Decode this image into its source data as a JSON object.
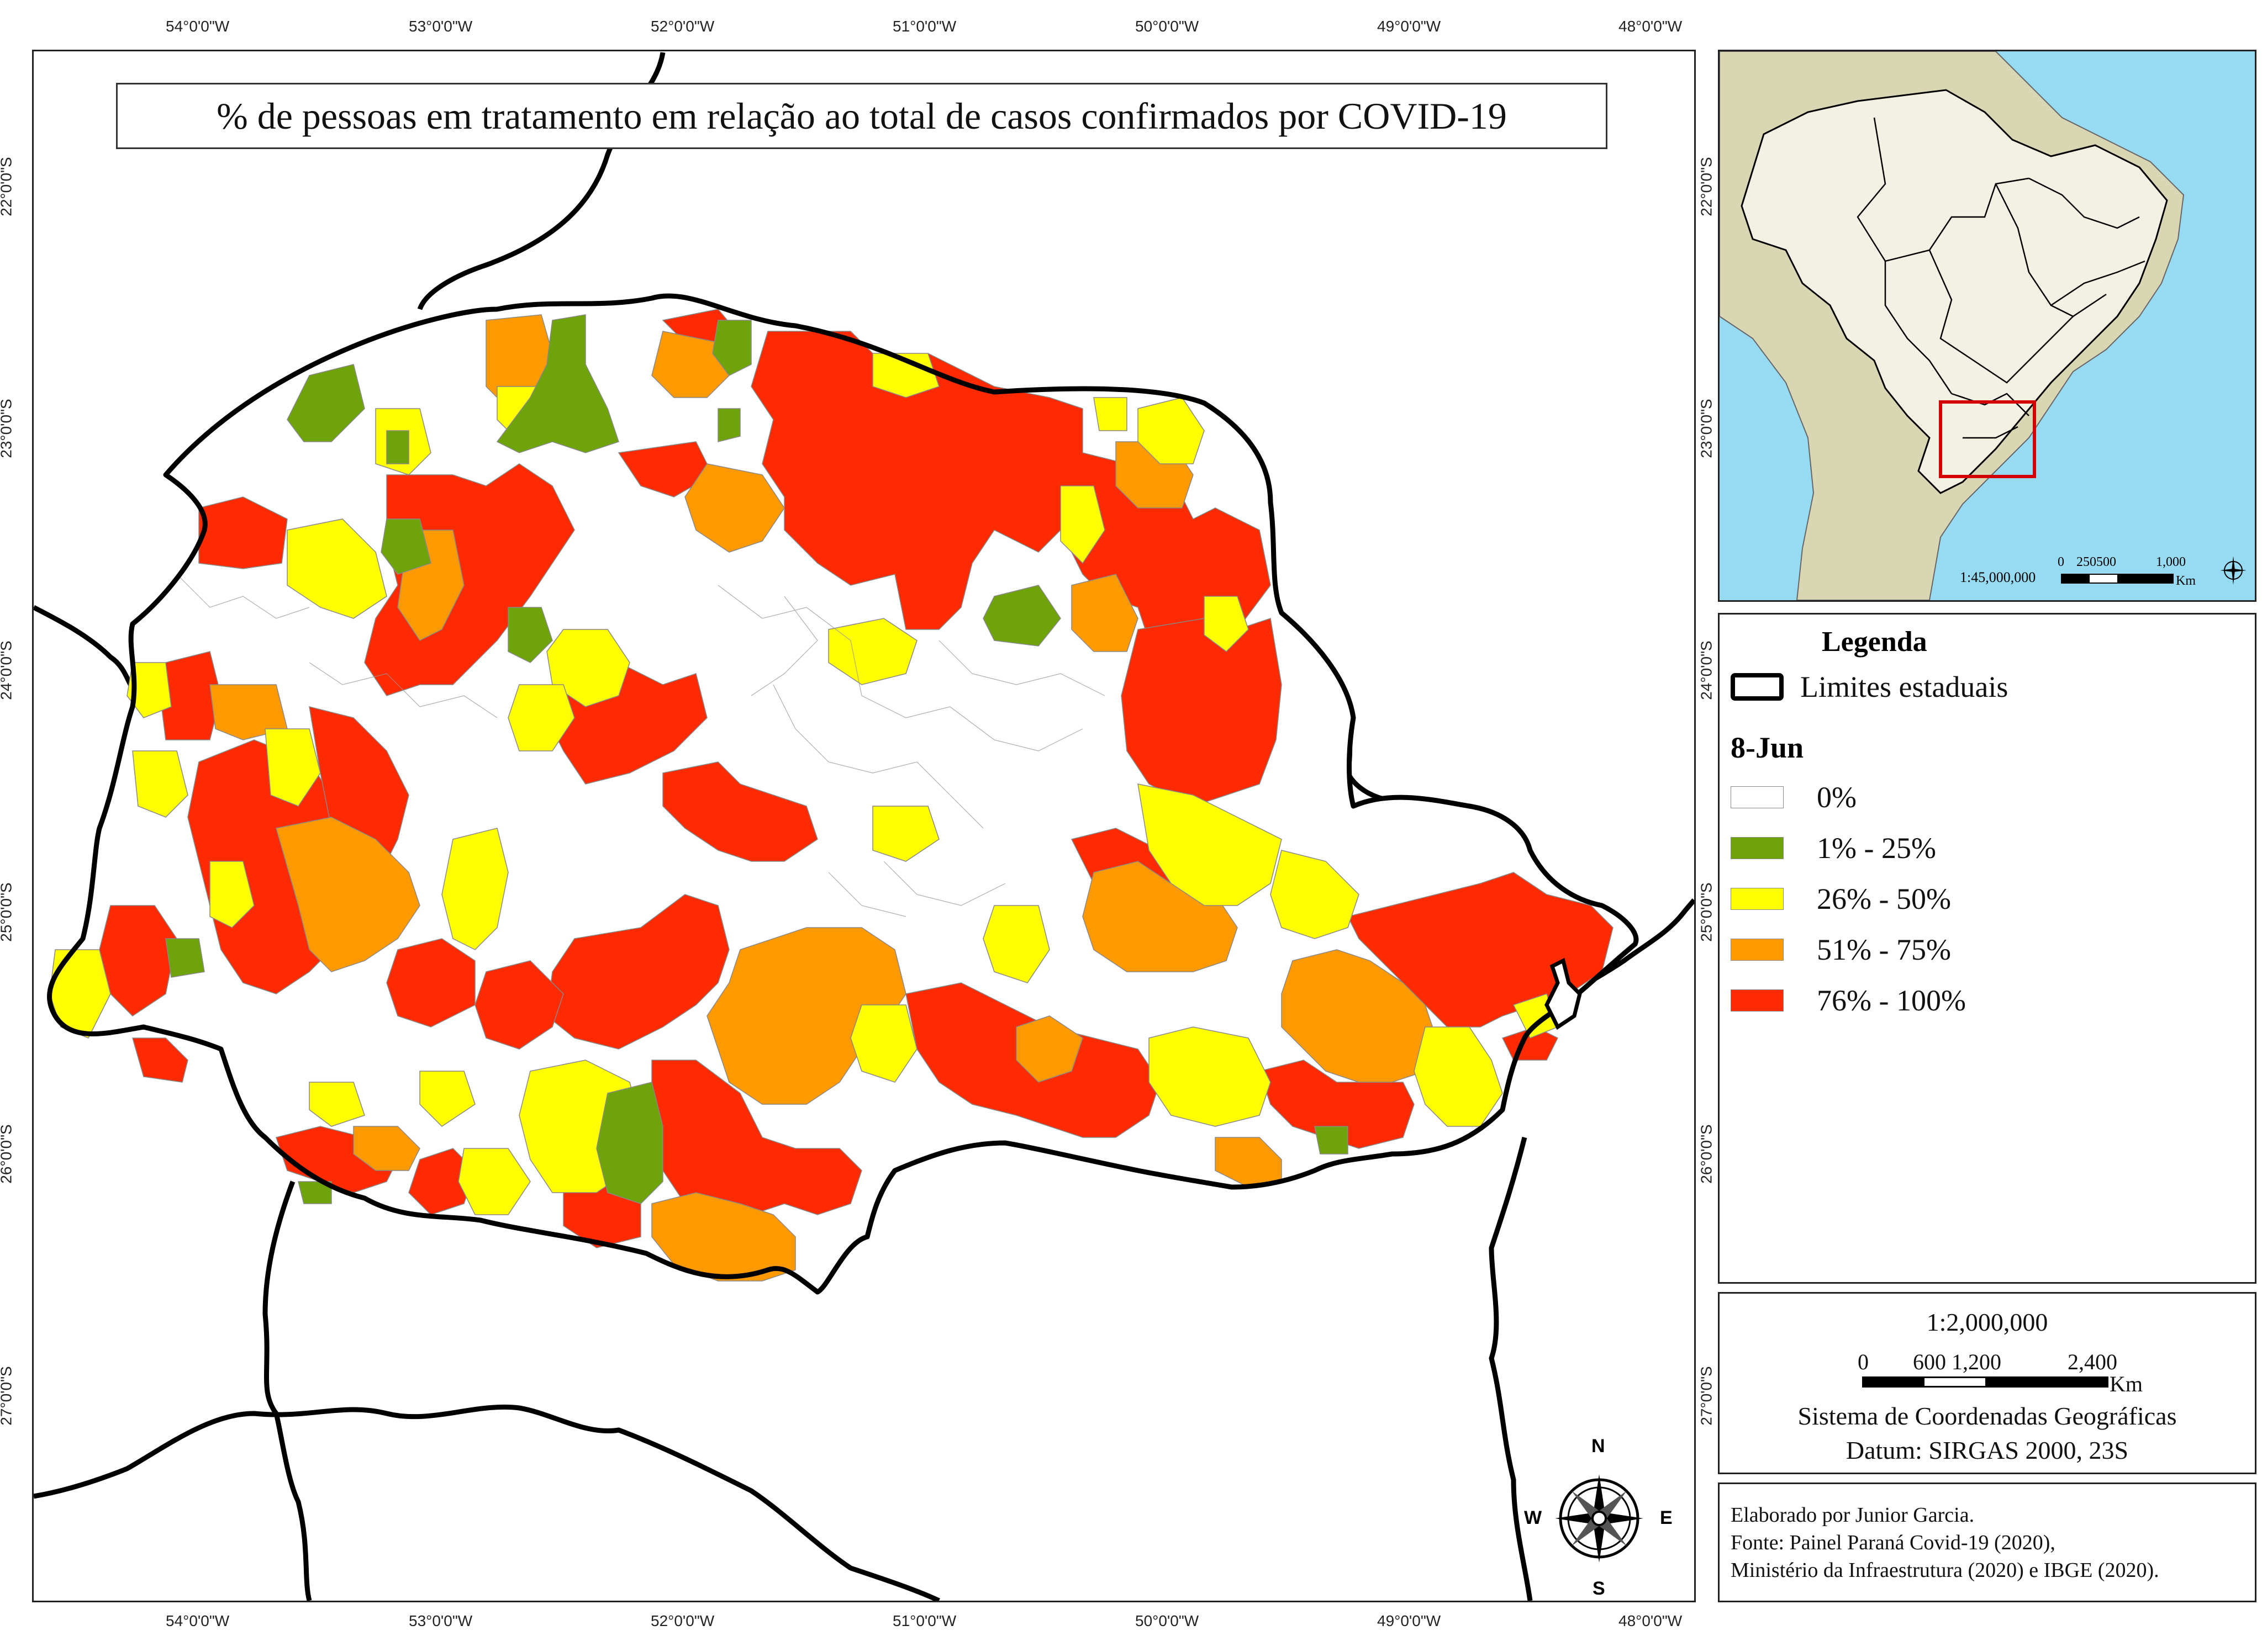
{
  "map": {
    "title": "% de pessoas em tratamento em relação ao total de casos confirmados por COVID-19",
    "longitude_ticks": [
      "54°0'0\"W",
      "53°0'0\"W",
      "52°0'0\"W",
      "51°0'0\"W",
      "50°0'0\"W",
      "49°0'0\"W",
      "48°0'0\"W"
    ],
    "latitude_ticks_main": [
      "22°0'0\"S",
      "23°0'0\"S",
      "24°0'0\"S",
      "25°0'0\"S",
      "26°0'0\"S",
      "27°0'0\"S"
    ],
    "latitude_ticks_right": [
      "24°0'0\"S",
      "25°0'0\"S",
      "26°0'0\"S",
      "27°0'0\"S"
    ],
    "inset_lat_ticks": [
      "22°0'0\"S",
      "23°0'0\"S"
    ],
    "compass": {
      "n": "N",
      "s": "S",
      "e": "E",
      "w": "W"
    },
    "colors": {
      "zero": "#ffffff",
      "c1": "#6ea40a",
      "c2": "#ffff00",
      "c3": "#ff9900",
      "c4": "#ff2a00",
      "water": "#97dbf2",
      "land": "#d9d6b4",
      "brazil": "#f3f1e3"
    }
  },
  "inset": {
    "scale_text": "1:45,000,000",
    "scale_ticks": [
      "0",
      "250500",
      "1,000"
    ],
    "scale_unit": "Km"
  },
  "legend": {
    "title": "Legenda",
    "limits_label": "Limites estaduais",
    "date": "8-Jun",
    "classes": [
      {
        "label": "0%",
        "color": "#ffffff"
      },
      {
        "label": "1% - 25%",
        "color": "#6ea40a"
      },
      {
        "label": "26% - 50%",
        "color": "#ffff00"
      },
      {
        "label": "51% - 75%",
        "color": "#ff9900"
      },
      {
        "label": "76% - 100%",
        "color": "#ff2a00"
      }
    ]
  },
  "scalebox": {
    "ratio": "1:2,000,000",
    "ticks": [
      "0",
      "600 1,200",
      "2,400"
    ],
    "unit": "Km",
    "coord_system": "Sistema de Coordenadas Geográficas",
    "datum": "Datum: SIRGAS 2000, 23S"
  },
  "credits": {
    "line1": "Elaborado por Junior Garcia.",
    "line2": "Fonte: Painel Paraná Covid-19 (2020),",
    "line3": "Ministério da Infraestrutura (2020) e IBGE (2020)."
  }
}
